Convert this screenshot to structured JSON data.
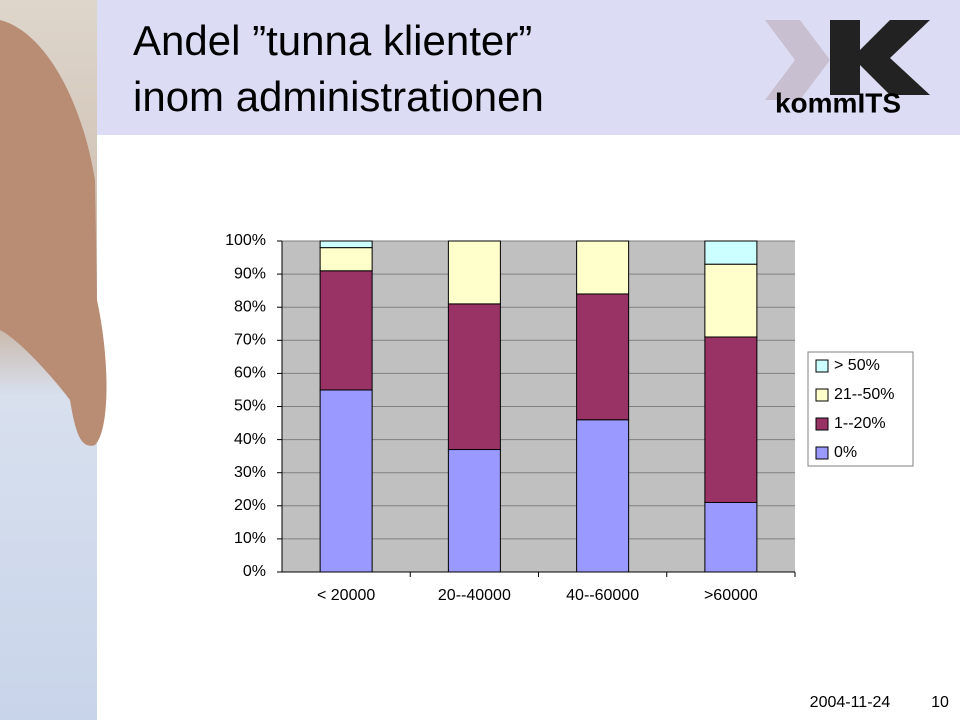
{
  "header": {
    "title_lines": [
      "Andel ”tunna klienter”",
      "inom administrationen"
    ],
    "logo": "kommITS"
  },
  "footer": {
    "date": "2004-11-24",
    "page": "10"
  },
  "chart_data": {
    "type": "bar",
    "stacked": true,
    "categories": [
      "< 20000",
      "20--40000",
      "40--60000",
      ">60000"
    ],
    "series": [
      {
        "name": "0%",
        "color": "#9999ff",
        "values": [
          55,
          37,
          46,
          21
        ]
      },
      {
        "name": "1--20%",
        "color": "#993366",
        "values": [
          36,
          44,
          38,
          50
        ]
      },
      {
        "name": "21--50%",
        "color": "#ffffcc",
        "values": [
          7,
          19,
          16,
          22
        ]
      },
      {
        "name": "> 50%",
        "color": "#ccffff",
        "values": [
          2,
          0,
          0,
          7
        ]
      }
    ],
    "ylim": [
      0,
      100
    ],
    "yticks": [
      {
        "value": 0,
        "label": "0%"
      },
      {
        "value": 10,
        "label": "10%"
      },
      {
        "value": 20,
        "label": "20%"
      },
      {
        "value": 30,
        "label": "30%"
      },
      {
        "value": 40,
        "label": "40%"
      },
      {
        "value": 50,
        "label": "50%"
      },
      {
        "value": 60,
        "label": "60%"
      },
      {
        "value": 70,
        "label": "70%"
      },
      {
        "value": 80,
        "label": "80%"
      },
      {
        "value": 90,
        "label": "90%"
      },
      {
        "value": 100,
        "label": "100%"
      }
    ],
    "grid": true,
    "legend": "right"
  }
}
